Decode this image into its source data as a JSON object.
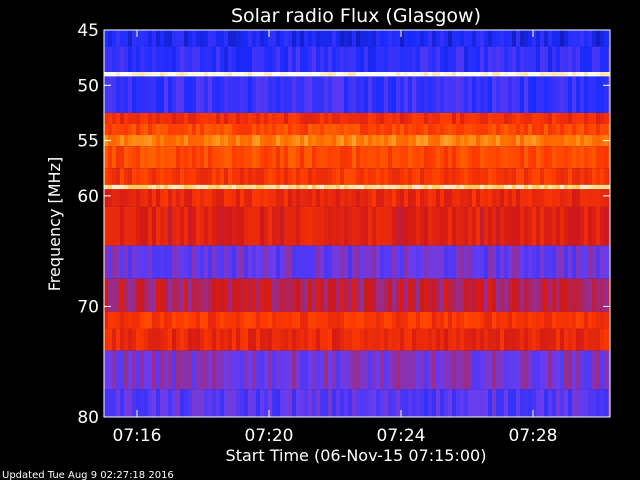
{
  "chart_data": {
    "type": "heatmap",
    "title": "Solar radio Flux (Glasgow)",
    "xlabel": "Start Time (06-Nov-15 07:15:00)",
    "ylabel": "Frequency [MHz]",
    "x_tick_labels": [
      "07:16",
      "07:20",
      "07:24",
      "07:28"
    ],
    "y_tick_labels": [
      "45",
      "50",
      "55",
      "60",
      "70",
      "80"
    ],
    "y_ticks_mhz": [
      45,
      50,
      55,
      60,
      70,
      80
    ],
    "xlim": [
      "07:15:00",
      "07:30:20"
    ],
    "ylim_mhz": [
      45,
      80
    ],
    "colormap": [
      "#0b0c6e",
      "#1a2cff",
      "#6a3df0",
      "#d01818",
      "#ff3a00",
      "#ff7a00",
      "#ffd060",
      "#ffffff"
    ],
    "frequency_bands": [
      {
        "from_mhz": 45.0,
        "to_mhz": 46.5,
        "level": 0.14
      },
      {
        "from_mhz": 46.5,
        "to_mhz": 48.8,
        "level": 0.18
      },
      {
        "from_mhz": 48.8,
        "to_mhz": 49.2,
        "level": 0.98
      },
      {
        "from_mhz": 49.2,
        "to_mhz": 52.5,
        "level": 0.2
      },
      {
        "from_mhz": 52.5,
        "to_mhz": 53.5,
        "level": 0.52
      },
      {
        "from_mhz": 53.5,
        "to_mhz": 54.5,
        "level": 0.6
      },
      {
        "from_mhz": 54.5,
        "to_mhz": 55.5,
        "level": 0.72
      },
      {
        "from_mhz": 55.5,
        "to_mhz": 57.5,
        "level": 0.6
      },
      {
        "from_mhz": 57.5,
        "to_mhz": 59.0,
        "level": 0.55
      },
      {
        "from_mhz": 59.0,
        "to_mhz": 59.4,
        "level": 0.9
      },
      {
        "from_mhz": 59.4,
        "to_mhz": 61.0,
        "level": 0.5
      },
      {
        "from_mhz": 61.0,
        "to_mhz": 64.5,
        "level": 0.47
      },
      {
        "from_mhz": 64.5,
        "to_mhz": 67.5,
        "level": 0.28
      },
      {
        "from_mhz": 67.5,
        "to_mhz": 70.5,
        "level": 0.4
      },
      {
        "from_mhz": 70.5,
        "to_mhz": 72.0,
        "level": 0.55
      },
      {
        "from_mhz": 72.0,
        "to_mhz": 74.0,
        "level": 0.5
      },
      {
        "from_mhz": 74.0,
        "to_mhz": 77.5,
        "level": 0.3
      },
      {
        "from_mhz": 77.5,
        "to_mhz": 80.0,
        "level": 0.25
      }
    ]
  },
  "footer": {
    "updated": "Updated Tue Aug  9 02:27:18 2016"
  }
}
